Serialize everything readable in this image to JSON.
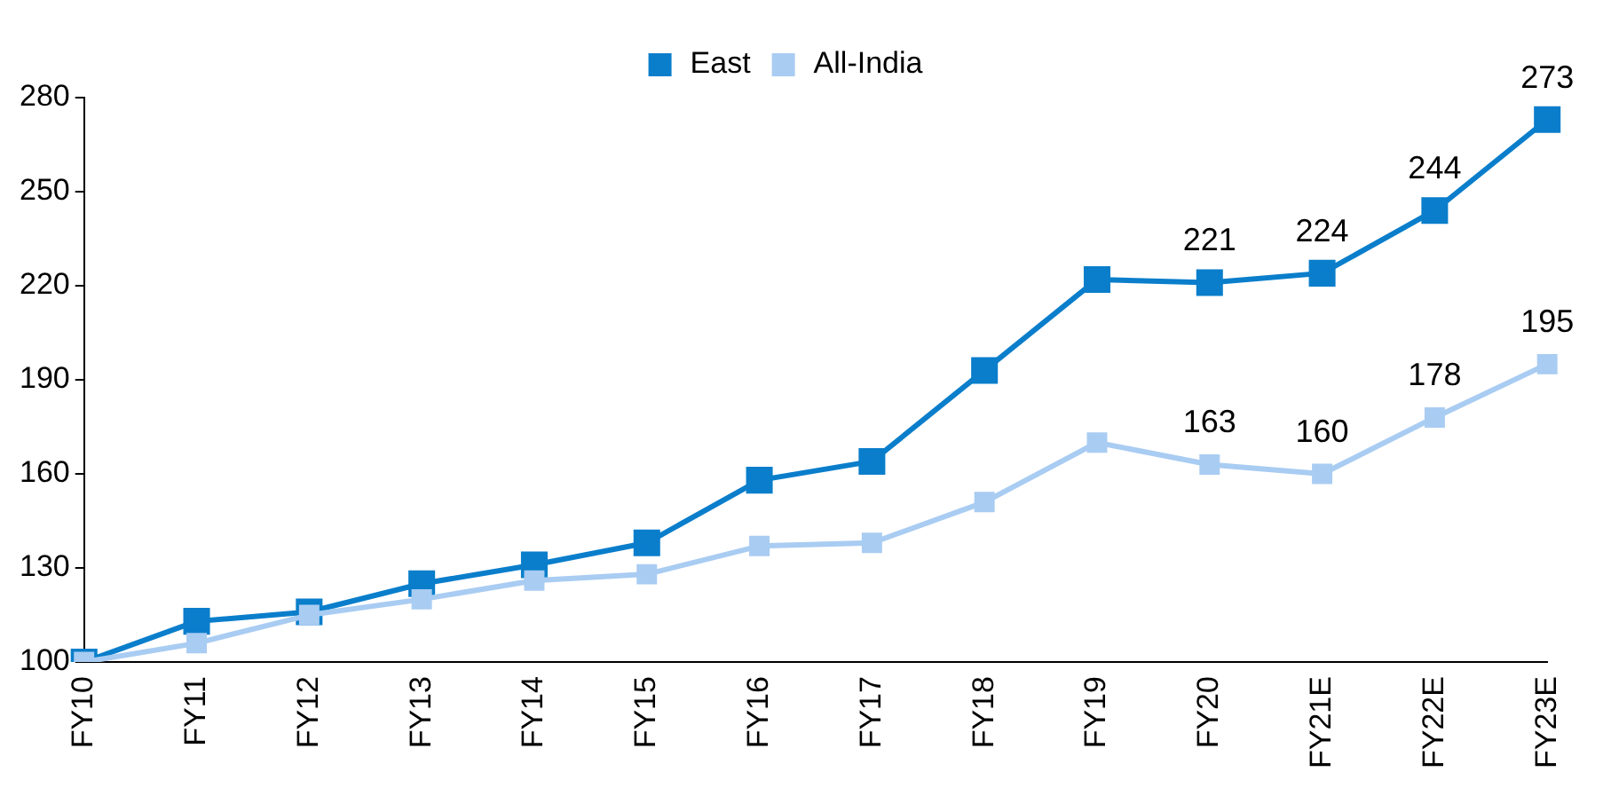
{
  "chart_data": {
    "type": "line",
    "categories": [
      "FY10",
      "FY11",
      "FY12",
      "FY13",
      "FY14",
      "FY15",
      "FY16",
      "FY17",
      "FY18",
      "FY19",
      "FY20",
      "FY21E",
      "FY22E",
      "FY23E"
    ],
    "series": [
      {
        "name": "East",
        "color": "#0a7ecb",
        "values": [
          100,
          113,
          116,
          125,
          131,
          138,
          158,
          164,
          193,
          222,
          221,
          224,
          244,
          273
        ],
        "value_labels": [
          null,
          null,
          null,
          null,
          null,
          null,
          null,
          null,
          null,
          null,
          "221",
          "224",
          "244",
          "273"
        ]
      },
      {
        "name": "All-India",
        "color": "#a9ccf2",
        "values": [
          100,
          106,
          115,
          120,
          126,
          128,
          137,
          138,
          151,
          170,
          163,
          160,
          178,
          195
        ],
        "value_labels": [
          null,
          null,
          null,
          null,
          null,
          null,
          null,
          null,
          null,
          null,
          "163",
          "160",
          "178",
          "195"
        ]
      }
    ],
    "ylim": [
      100,
      280
    ],
    "yticks": [
      100,
      130,
      160,
      190,
      220,
      250,
      280
    ],
    "grid": false,
    "legend": "top",
    "marker": "square",
    "line_style": "solid"
  }
}
